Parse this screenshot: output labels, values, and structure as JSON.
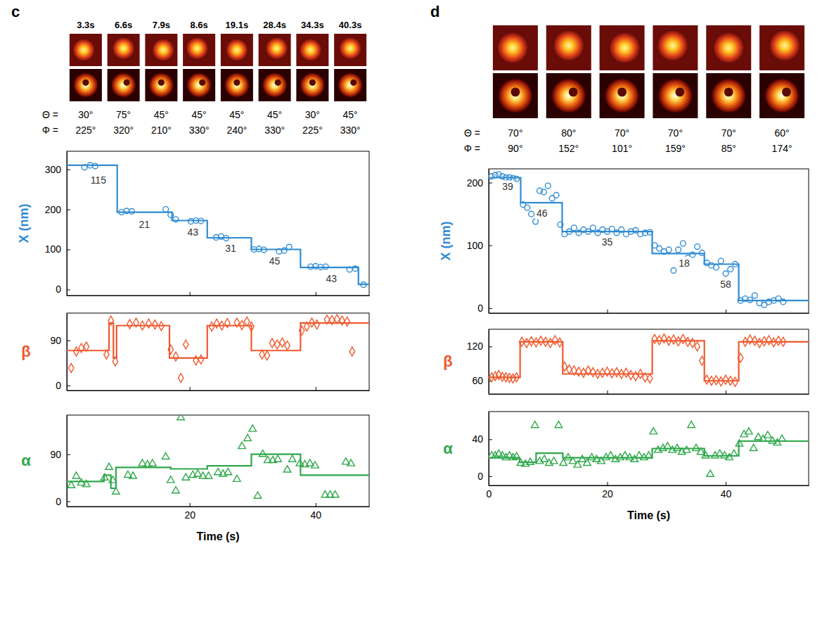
{
  "panels": [
    {
      "letter": "c",
      "frames": [
        {
          "time": "3.3s",
          "theta": "30°",
          "phi": "225°"
        },
        {
          "time": "6.6s",
          "theta": "75°",
          "phi": "320°"
        },
        {
          "time": "7.9s",
          "theta": "45°",
          "phi": "210°"
        },
        {
          "time": "8.6s",
          "theta": "45°",
          "phi": "330°"
        },
        {
          "time": "19.1s",
          "theta": "45°",
          "phi": "240°"
        },
        {
          "time": "28.4s",
          "theta": "45°",
          "phi": "330°"
        },
        {
          "time": "34.3s",
          "theta": "30°",
          "phi": "225°"
        },
        {
          "time": "40.3s",
          "theta": "45°",
          "phi": "330°"
        }
      ]
    },
    {
      "letter": "d",
      "frames": [
        {
          "theta": "70°",
          "phi": "90°"
        },
        {
          "theta": "80°",
          "phi": "152°"
        },
        {
          "theta": "70°",
          "phi": "101°"
        },
        {
          "theta": "70°",
          "phi": "159°"
        },
        {
          "theta": "70°",
          "phi": "85°"
        },
        {
          "theta": "60°",
          "phi": "174°"
        }
      ]
    }
  ],
  "frame_labels": {
    "theta": "Θ =",
    "phi": "Φ ="
  },
  "chart_data": [
    {
      "type": "scatter",
      "ylabel": "X (nm)",
      "color": "#2f8bd3",
      "tick_labels": "y",
      "xlim": [
        0.5,
        48.5
      ],
      "xticks": [
        20,
        40
      ],
      "ylim": [
        -15,
        345
      ],
      "yticks": [
        0,
        100,
        200,
        300
      ],
      "series": [
        {
          "type": "scatter",
          "marker": "circle",
          "x": [
            3.3,
            4.2,
            5.0,
            9.2,
            10.0,
            10.8,
            16.2,
            17.0,
            17.8,
            20.2,
            21.0,
            21.8,
            24.2,
            25.0,
            25.8,
            30.2,
            31.0,
            31.8,
            34.2,
            35.0,
            35.8,
            39.2,
            40.0,
            40.8,
            41.6,
            45.4,
            46.3,
            47.6
          ],
          "values": [
            305,
            310,
            308,
            193,
            196,
            195,
            200,
            186,
            175,
            170,
            172,
            171,
            130,
            132,
            128,
            100,
            101,
            99,
            95,
            97,
            106,
            57,
            58,
            56,
            57,
            50,
            52,
            12
          ]
        },
        {
          "type": "line",
          "line_style": "step",
          "x": [
            0.5,
            8.5,
            17.2,
            22.8,
            29.8,
            37.6,
            46.8,
            48.5
          ],
          "values": [
            310,
            193,
            172,
            129,
            100,
            55,
            13,
            13
          ]
        }
      ],
      "annotations": [
        {
          "text": "115",
          "x": 5.5,
          "y": 270
        },
        {
          "text": "21",
          "x": 12.8,
          "y": 160
        },
        {
          "text": "43",
          "x": 20.5,
          "y": 140
        },
        {
          "text": "31",
          "x": 26.5,
          "y": 100
        },
        {
          "text": "45",
          "x": 33.5,
          "y": 68
        },
        {
          "text": "43",
          "x": 42.5,
          "y": 25
        }
      ]
    },
    {
      "type": "scatter",
      "ylabel": "β",
      "color": "#ef5a2f",
      "tick_labels": "y",
      "xlim": [
        0.5,
        48.5
      ],
      "xticks": [
        20,
        40
      ],
      "ylim": [
        -10,
        145
      ],
      "yticks": [
        0,
        90
      ],
      "series": [
        {
          "type": "scatter",
          "marker": "diamond",
          "x": [
            1.2,
            2.0,
            2.8,
            3.6,
            6.8,
            7.5,
            8.2,
            10.5,
            11.5,
            12.5,
            13.5,
            14.5,
            15.5,
            17.0,
            17.8,
            18.6,
            19.4,
            21.0,
            21.8,
            23.5,
            24.3,
            25.1,
            26.0,
            27.5,
            28.3,
            29.1,
            29.8,
            31.5,
            32.3,
            33.1,
            33.9,
            34.7,
            35.5,
            37.8,
            38.6,
            39.4,
            40.2,
            41.8,
            42.6,
            43.4,
            44.2,
            45.0,
            45.8
          ],
          "values": [
            35,
            68,
            75,
            78,
            62,
            130,
            48,
            123,
            126,
            120,
            124,
            122,
            119,
            72,
            58,
            15,
            82,
            50,
            52,
            118,
            124,
            120,
            125,
            126,
            121,
            128,
            118,
            62,
            60,
            85,
            82,
            86,
            80,
            110,
            118,
            126,
            122,
            132,
            131,
            133,
            130,
            128,
            68
          ]
        },
        {
          "type": "line",
          "line_style": "step",
          "x": [
            0.5,
            7.2,
            7.9,
            8.4,
            16.8,
            22.8,
            29.8,
            37.6,
            48.5
          ],
          "values": [
            70,
            125,
            55,
            120,
            55,
            120,
            70,
            125,
            125
          ]
        }
      ]
    },
    {
      "type": "scatter",
      "ylabel": "α",
      "xlabel": "Time (s)",
      "color": "#2ea84a",
      "xlim": [
        0.5,
        48.5
      ],
      "xticks": [
        20,
        40
      ],
      "ylim": [
        -10,
        165
      ],
      "yticks": [
        0,
        90
      ],
      "series": [
        {
          "type": "scatter",
          "marker": "triangle",
          "x": [
            1.2,
            2.0,
            2.8,
            3.6,
            6.5,
            7.2,
            7.8,
            8.3,
            10.2,
            11.0,
            12.5,
            13.3,
            14.1,
            16.2,
            17.0,
            17.8,
            18.6,
            19.4,
            20.5,
            21.3,
            22.1,
            23.0,
            24.5,
            25.3,
            26.1,
            27.5,
            28.3,
            29.2,
            30.0,
            30.8,
            31.6,
            32.4,
            33.2,
            34.0,
            35.5,
            36.3,
            37.5,
            38.3,
            39.1,
            39.9,
            41.5,
            42.3,
            43.1,
            44.8,
            45.6
          ],
          "values": [
            30,
            48,
            35,
            32,
            45,
            65,
            40,
            18,
            50,
            48,
            72,
            70,
            72,
            85,
            40,
            20,
            160,
            45,
            50,
            52,
            48,
            48,
            55,
            52,
            55,
            42,
            105,
            120,
            138,
            10,
            90,
            78,
            78,
            80,
            60,
            80,
            72,
            70,
            72,
            68,
            12,
            12,
            12,
            75,
            72
          ]
        },
        {
          "type": "line",
          "line_style": "step",
          "x": [
            0.5,
            6.4,
            7.5,
            8.3,
            17.0,
            22.8,
            29.8,
            37.6,
            48.5
          ],
          "values": [
            38,
            50,
            25,
            65,
            62,
            68,
            90,
            50,
            50
          ]
        }
      ]
    },
    {
      "type": "scatter",
      "ylabel": "X (nm)",
      "color": "#2f8bd3",
      "tick_labels": "y",
      "xlim": [
        0,
        54
      ],
      "xticks": [
        0,
        20,
        40
      ],
      "ylim": [
        -8,
        222
      ],
      "yticks": [
        0,
        100,
        200
      ],
      "series": [
        {
          "type": "scatter",
          "marker": "circle",
          "x": [
            0.5,
            1.1,
            1.7,
            2.3,
            2.9,
            3.5,
            4.1,
            4.7,
            5.8,
            6.5,
            7.2,
            7.9,
            8.6,
            9.3,
            10.0,
            10.7,
            11.4,
            12.1,
            12.8,
            13.6,
            14.4,
            15.2,
            16.0,
            16.8,
            17.6,
            18.4,
            19.2,
            20.0,
            20.8,
            21.6,
            22.4,
            23.2,
            24.0,
            24.8,
            25.6,
            26.4,
            27.2,
            28.0,
            28.8,
            29.6,
            30.4,
            31.2,
            32.0,
            32.8,
            33.6,
            34.4,
            35.2,
            36.0,
            36.8,
            37.6,
            38.4,
            39.2,
            40.0,
            40.8,
            41.6,
            42.5,
            43.3,
            44.1,
            44.9,
            45.7,
            46.5,
            47.3,
            48.1,
            48.9,
            49.7
          ],
          "values": [
            210,
            212,
            213,
            210,
            208,
            208,
            207,
            206,
            165,
            160,
            150,
            138,
            187,
            185,
            195,
            175,
            180,
            133,
            118,
            122,
            128,
            120,
            125,
            122,
            128,
            120,
            125,
            122,
            126,
            120,
            125,
            118,
            122,
            124,
            118,
            120,
            121,
            100,
            95,
            90,
            93,
            60,
            93,
            103,
            80,
            85,
            98,
            88,
            72,
            68,
            65,
            75,
            55,
            62,
            70,
            12,
            15,
            13,
            20,
            8,
            5,
            10,
            12,
            15,
            10
          ]
        },
        {
          "type": "line",
          "line_style": "step",
          "x": [
            0,
            5.4,
            12.4,
            27.6,
            36.4,
            42.2,
            54
          ],
          "values": [
            208,
            168,
            122,
            87,
            70,
            12,
            12
          ]
        }
      ],
      "annotations": [
        {
          "text": "39",
          "x": 3.2,
          "y": 192
        },
        {
          "text": "46",
          "x": 9.0,
          "y": 150
        },
        {
          "text": "35",
          "x": 20,
          "y": 104
        },
        {
          "text": "18",
          "x": 33.0,
          "y": 70
        },
        {
          "text": "58",
          "x": 40.0,
          "y": 36
        }
      ]
    },
    {
      "type": "scatter",
      "ylabel": "β",
      "color": "#ef5a2f",
      "tick_labels": "y",
      "xlim": [
        0,
        54
      ],
      "xticks": [
        0,
        20,
        40
      ],
      "ylim": [
        37,
        150
      ],
      "yticks": [
        60,
        120
      ],
      "series": [
        {
          "type": "scatter",
          "marker": "diamond",
          "x": [
            0.5,
            1.1,
            1.7,
            2.3,
            2.9,
            3.5,
            4.1,
            4.7,
            5.6,
            6.4,
            7.2,
            8.0,
            8.8,
            9.6,
            10.4,
            11.2,
            12.0,
            12.8,
            13.6,
            14.4,
            15.2,
            16.0,
            16.8,
            17.6,
            18.4,
            19.2,
            20.0,
            20.8,
            21.6,
            22.4,
            23.2,
            24.0,
            24.8,
            25.6,
            26.4,
            27.2,
            28.0,
            28.8,
            29.6,
            30.4,
            31.2,
            32.0,
            32.8,
            33.6,
            34.4,
            35.2,
            36.0,
            36.8,
            37.6,
            38.4,
            39.2,
            40.0,
            40.8,
            41.6,
            42.5,
            43.3,
            44.1,
            44.9,
            45.7,
            46.5,
            47.3,
            48.1,
            48.9,
            49.7
          ],
          "values": [
            66,
            68,
            70,
            67,
            66,
            65,
            64,
            66,
            128,
            126,
            129,
            127,
            130,
            128,
            126,
            131,
            127,
            85,
            80,
            78,
            76,
            74,
            78,
            75,
            72,
            74,
            76,
            73,
            75,
            72,
            74,
            70,
            68,
            72,
            66,
            64,
            133,
            131,
            134,
            130,
            132,
            129,
            133,
            128,
            126,
            120,
            95,
            62,
            60,
            61,
            59,
            62,
            60,
            58,
            100,
            128,
            132,
            130,
            126,
            129,
            131,
            127,
            130,
            128
          ]
        },
        {
          "type": "line",
          "line_style": "step",
          "x": [
            0,
            5.3,
            12.5,
            27.6,
            36.4,
            42.2,
            54
          ],
          "values": [
            66,
            128,
            72,
            130,
            60,
            128,
            128
          ]
        }
      ]
    },
    {
      "type": "scatter",
      "ylabel": "α",
      "xlabel": "Time (s)",
      "color": "#2ea84a",
      "xlim": [
        0,
        54
      ],
      "xticks": [
        0,
        20,
        40
      ],
      "ylim": [
        -10,
        70
      ],
      "yticks": [
        0,
        40
      ],
      "series": [
        {
          "type": "scatter",
          "marker": "triangle",
          "x": [
            0.5,
            1.1,
            1.7,
            2.3,
            2.9,
            3.5,
            4.1,
            4.7,
            5.4,
            6.2,
            7.0,
            7.8,
            8.6,
            9.4,
            10.2,
            11.0,
            11.8,
            12.6,
            13.4,
            14.2,
            15.0,
            15.8,
            16.6,
            17.4,
            18.2,
            19.0,
            19.8,
            20.6,
            21.4,
            22.2,
            23.0,
            23.8,
            24.6,
            25.4,
            26.2,
            27.0,
            27.8,
            28.6,
            29.4,
            30.2,
            31.0,
            31.8,
            32.6,
            33.4,
            34.2,
            35.0,
            35.8,
            36.6,
            37.4,
            38.2,
            39.0,
            39.8,
            40.6,
            41.4,
            42.3,
            43.1,
            43.9,
            44.7,
            45.5,
            46.3,
            47.1,
            47.9,
            48.7,
            49.5
          ],
          "values": [
            22,
            22,
            24,
            22,
            20,
            22,
            20,
            21,
            14,
            13,
            15,
            55,
            16,
            18,
            14,
            16,
            55,
            14,
            20,
            16,
            12,
            18,
            14,
            20,
            18,
            16,
            20,
            22,
            18,
            20,
            22,
            20,
            18,
            22,
            20,
            22,
            48,
            28,
            30,
            32,
            28,
            30,
            26,
            28,
            55,
            30,
            26,
            22,
            2,
            22,
            24,
            22,
            20,
            24,
            35,
            45,
            48,
            30,
            42,
            40,
            44,
            38,
            36,
            40
          ]
        },
        {
          "type": "line",
          "line_style": "step",
          "x": [
            0,
            5.2,
            8.0,
            12.5,
            27.6,
            36.4,
            42.2,
            54
          ],
          "values": [
            20,
            15,
            25,
            20,
            30,
            22,
            38,
            38
          ]
        }
      ]
    }
  ]
}
